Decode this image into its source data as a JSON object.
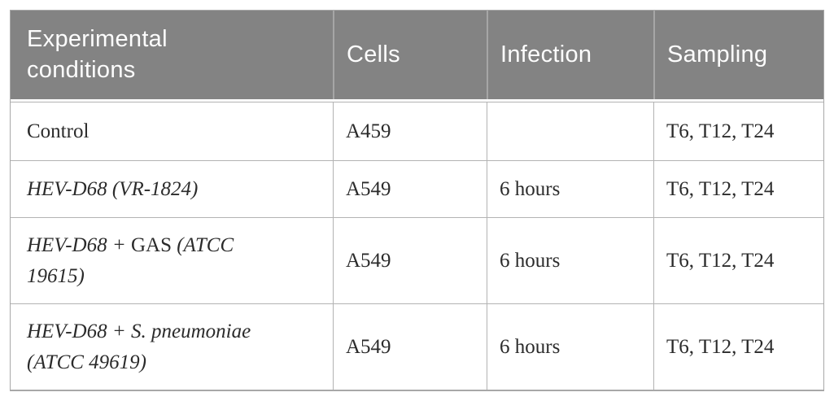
{
  "colors": {
    "header_bg": "#838383",
    "header_divider": "#a6a6a6",
    "header_text": "#fdfdfd",
    "body_text": "#2b2b2b",
    "grid_border": "#b3b3b3",
    "outer_border": "#a8a8a8",
    "page_bg": "#ffffff"
  },
  "table": {
    "headers": [
      {
        "id": "conditions",
        "label": "Experimental conditions"
      },
      {
        "id": "cells",
        "label": "Cells"
      },
      {
        "id": "infection",
        "label": "Infection"
      },
      {
        "id": "sampling",
        "label": "Sampling"
      }
    ],
    "rows": [
      {
        "condition_lines": [
          [
            {
              "t": "Control",
              "i": false
            }
          ]
        ],
        "cells": "A459",
        "infection": "",
        "sampling": "T6, T12, T24"
      },
      {
        "condition_lines": [
          [
            {
              "t": "HEV-D68 (VR-1824)",
              "i": true
            }
          ]
        ],
        "cells": "A549",
        "infection": "6 hours",
        "sampling": "T6, T12, T24"
      },
      {
        "condition_lines": [
          [
            {
              "t": "HEV-D68 + ",
              "i": true
            },
            {
              "t": "GAS ",
              "i": false
            },
            {
              "t": "(ATCC",
              "i": true
            }
          ],
          [
            {
              "t": "19615)",
              "i": true
            }
          ]
        ],
        "cells": "A549",
        "infection": "6 hours",
        "sampling": "T6, T12, T24"
      },
      {
        "condition_lines": [
          [
            {
              "t": "HEV-D68 + S. pneumoniae",
              "i": true
            }
          ],
          [
            {
              "t": "(ATCC 49619)",
              "i": true
            }
          ]
        ],
        "cells": "A549",
        "infection": "6 hours",
        "sampling": "T6, T12, T24"
      }
    ]
  }
}
